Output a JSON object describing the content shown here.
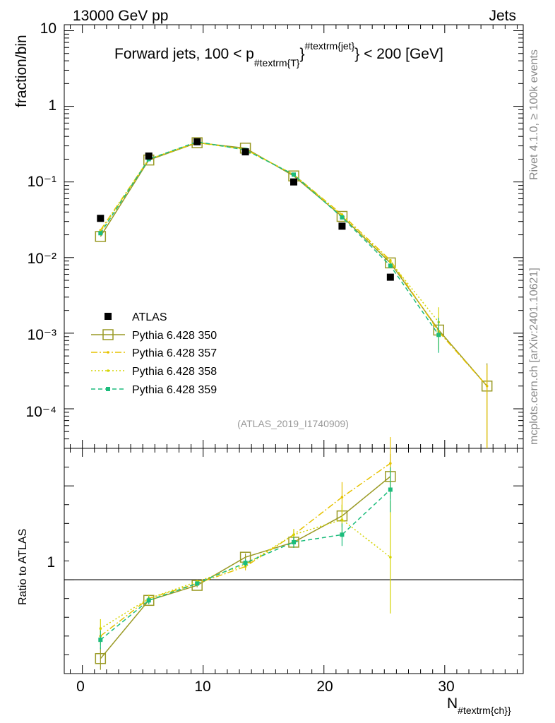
{
  "header": {
    "energy": "13000 GeV pp",
    "category": "Jets"
  },
  "side_labels": {
    "rivet": "Rivet 4.1.0, ≥ 100k events",
    "mcplots": "mcplots.cern.ch [arXiv:2401.10621]"
  },
  "chart_data": {
    "type": "line",
    "title_parts": {
      "pre": "Forward jets, 100 < p",
      "sub": "#textrm{T}",
      "sup": "#textrm{jet}",
      "post": "} < 200 [GeV]"
    },
    "analysis": "(ATLAS_2019_I1740909)",
    "xlabel_main": "N",
    "xlabel_sub": "#textrm{ch}}",
    "ylabel_main": "fraction/bin",
    "ylabel_ratio": "Ratio to ATLAS",
    "xlim": [
      -1.5,
      36.5
    ],
    "ylim_main": [
      3e-05,
      12
    ],
    "ylim_ratio": [
      0.5,
      1.7
    ],
    "x_ticks": [
      "0",
      "10",
      "20",
      "30"
    ],
    "y_ticks_main": [
      "10",
      "1",
      "10⁻¹",
      "10⁻²",
      "10⁻³",
      "10⁻⁴"
    ],
    "y_tick_ratio": "1",
    "data": {
      "name": "ATLAS",
      "color": "#000000",
      "x": [
        1.5,
        5.5,
        9.5,
        13.5,
        17.5,
        21.5,
        25.5
      ],
      "y": [
        0.033,
        0.22,
        0.34,
        0.25,
        0.1,
        0.026,
        0.0055
      ]
    },
    "series": [
      {
        "name": "Pythia 6.428 350",
        "color": "#9a9a25",
        "dash": "",
        "marker": "open-square",
        "x": [
          1.5,
          5.5,
          9.5,
          13.5,
          17.5,
          21.5,
          25.5,
          29.5,
          33.5
        ],
        "y": [
          0.019,
          0.195,
          0.33,
          0.28,
          0.12,
          0.035,
          0.0085,
          0.0011,
          0.0002
        ],
        "ratio": [
          0.58,
          0.89,
          0.97,
          1.12,
          1.2,
          1.34,
          1.55
        ],
        "ratio_err": [
          0.06,
          0.02,
          0.01,
          0.02,
          0.03,
          0.06,
          0.12
        ]
      },
      {
        "name": "Pythia 6.428 357",
        "color": "#e6c200",
        "dash": "9,3,2,3",
        "marker": "small",
        "x": [
          1.5,
          5.5,
          9.5,
          13.5,
          17.5,
          21.5,
          25.5,
          29.5,
          33.5
        ],
        "y": [
          0.023,
          0.2,
          0.33,
          0.27,
          0.125,
          0.037,
          0.0092,
          0.00105,
          0.0002
        ],
        "ratio": [
          0.7,
          0.9,
          0.98,
          1.07,
          1.24,
          1.44,
          1.62
        ],
        "ratio_err": [
          0.05,
          0.02,
          0.01,
          0.02,
          0.03,
          0.08,
          0.14
        ]
      },
      {
        "name": "Pythia 6.428 358",
        "color": "#d4d400",
        "dash": "2,3",
        "marker": "small",
        "x": [
          1.5,
          5.5,
          9.5,
          13.5,
          17.5,
          21.5,
          25.5,
          29.5
        ],
        "y": [
          0.022,
          0.2,
          0.335,
          0.27,
          0.125,
          0.036,
          0.0088,
          0.0014
        ],
        "ratio": [
          0.74,
          0.9,
          0.99,
          1.08,
          1.24,
          1.32,
          1.12
        ],
        "ratio_err": [
          0.05,
          0.02,
          0.01,
          0.02,
          0.03,
          0.08,
          0.3
        ]
      },
      {
        "name": "Pythia 6.428 359",
        "color": "#1cbc7c",
        "dash": "6,4",
        "marker": "filled-square",
        "x": [
          1.5,
          5.5,
          9.5,
          13.5,
          17.5,
          21.5,
          25.5,
          29.5
        ],
        "y": [
          0.021,
          0.2,
          0.34,
          0.265,
          0.125,
          0.034,
          0.0078,
          0.00095
        ],
        "ratio": [
          0.68,
          0.89,
          0.98,
          1.09,
          1.2,
          1.24,
          1.48
        ],
        "ratio_err": [
          0.05,
          0.02,
          0.01,
          0.02,
          0.03,
          0.06,
          0.12
        ]
      }
    ]
  }
}
